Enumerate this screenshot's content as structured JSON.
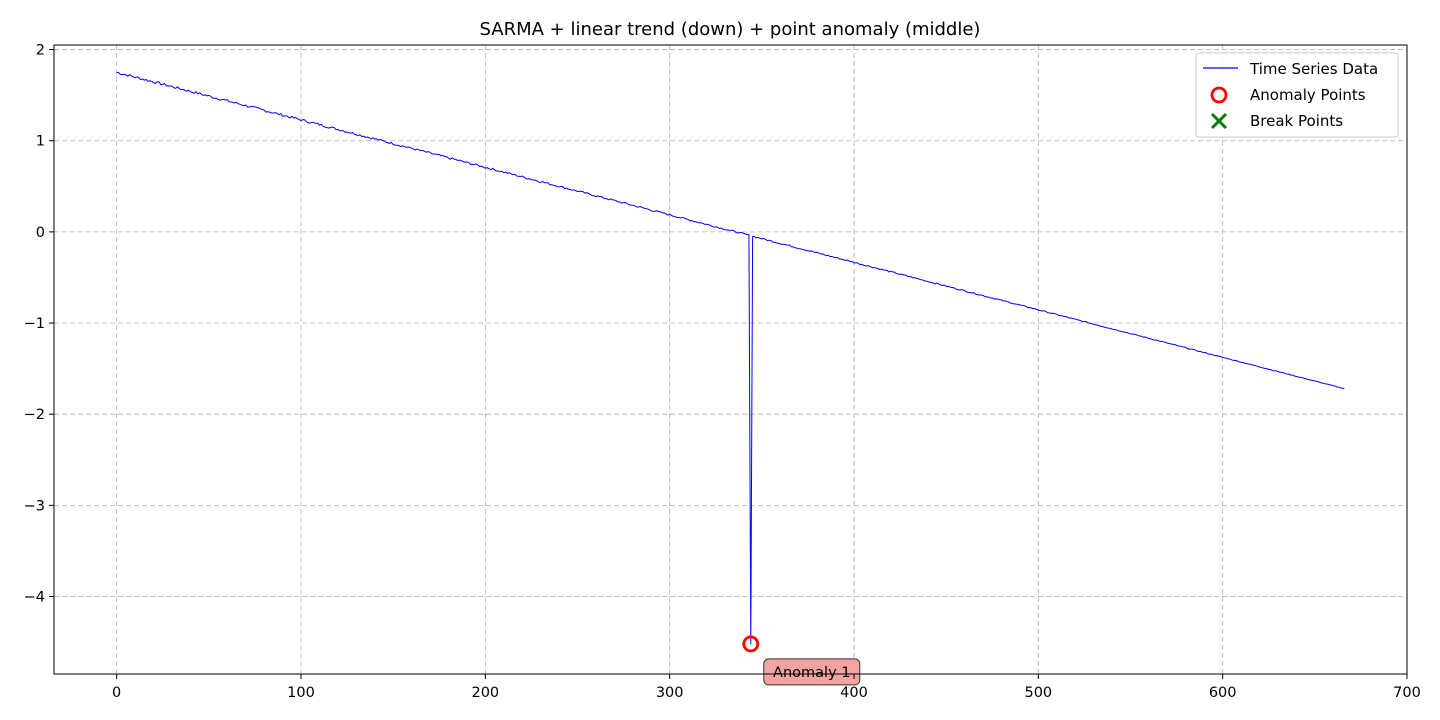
{
  "chart_data": {
    "type": "line",
    "title": "SARMA + linear trend (down) + point anomaly (middle)",
    "xlabel": "",
    "ylabel": "",
    "xlim": [
      -34,
      700
    ],
    "ylim": [
      -4.85,
      2.05
    ],
    "xticks": [
      0,
      100,
      200,
      300,
      400,
      500,
      600,
      700
    ],
    "yticks": [
      2,
      1,
      0,
      -1,
      -2,
      -3,
      -4
    ],
    "ytick_labels": [
      "2",
      "1",
      "0",
      "−1",
      "−2",
      "−3",
      "−4"
    ],
    "grid": true,
    "legend_position": "top-right",
    "series": [
      {
        "name": "Time Series Data",
        "color": "#0000ff",
        "generator": {
          "n": 667,
          "start_value": 1.75,
          "end_value": -1.72,
          "noise_amplitude": 0.012
        }
      }
    ],
    "anomalies": [
      {
        "x": 344,
        "y": -4.52,
        "label": "Anomaly 1"
      }
    ],
    "break_points": [],
    "legend": [
      {
        "label": "Time Series Data",
        "marker": "line",
        "color": "#0000ff"
      },
      {
        "label": "Anomaly Points",
        "marker": "circle",
        "color": "#ff0000"
      },
      {
        "label": "Break Points",
        "marker": "x",
        "color": "#008000"
      }
    ]
  }
}
